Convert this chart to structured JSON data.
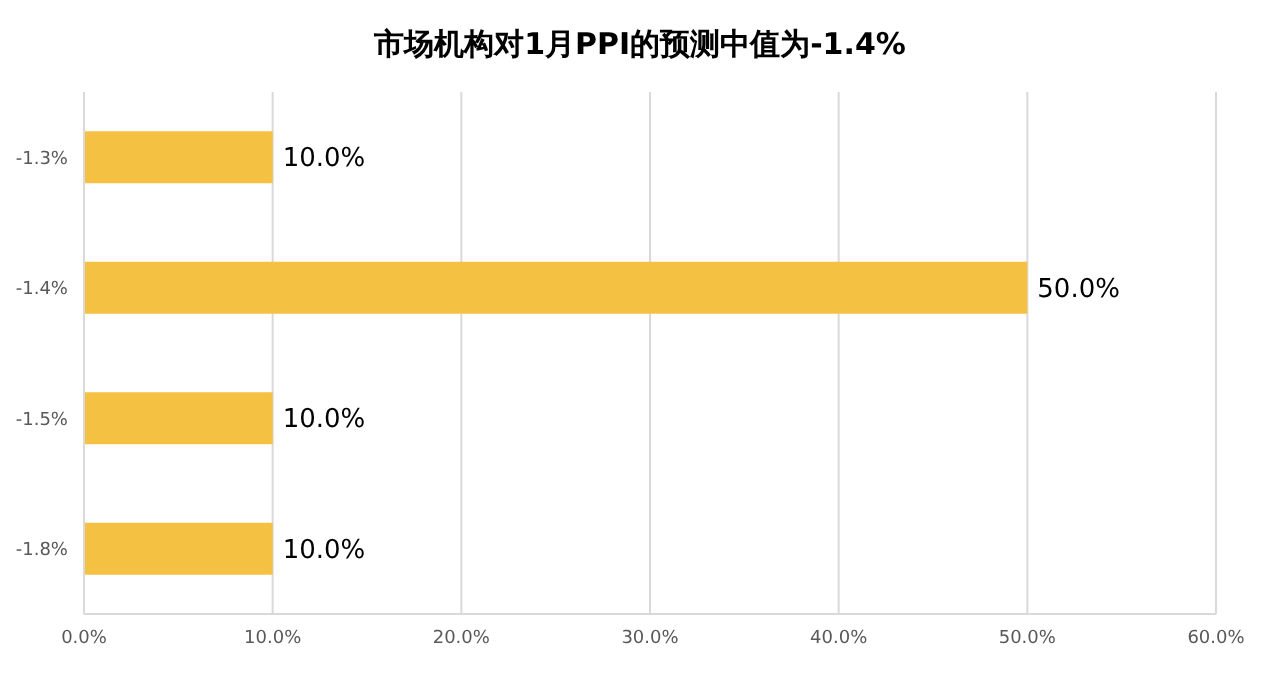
{
  "chart_data": {
    "type": "bar",
    "orientation": "horizontal",
    "title": "市场机构对1月PPI的预测中值为-1.4%",
    "categories": [
      "-1.3%",
      "-1.4%",
      "-1.5%",
      "-1.8%"
    ],
    "values": [
      10,
      50,
      10,
      10
    ],
    "value_labels": [
      "10.0%",
      "50.0%",
      "10.0%",
      "10.0%"
    ],
    "color": "#f5c142",
    "xlim": [
      0,
      60
    ],
    "xticks": [
      {
        "value": 0,
        "label": "0.0%"
      },
      {
        "value": 10,
        "label": "10.0%"
      },
      {
        "value": 20,
        "label": "20.0%"
      },
      {
        "value": 30,
        "label": "30.0%"
      },
      {
        "value": 40,
        "label": "40.0%"
      },
      {
        "value": 50,
        "label": "50.0%"
      },
      {
        "value": 60,
        "label": "60.0%"
      }
    ],
    "grid": "x",
    "legend": false
  }
}
